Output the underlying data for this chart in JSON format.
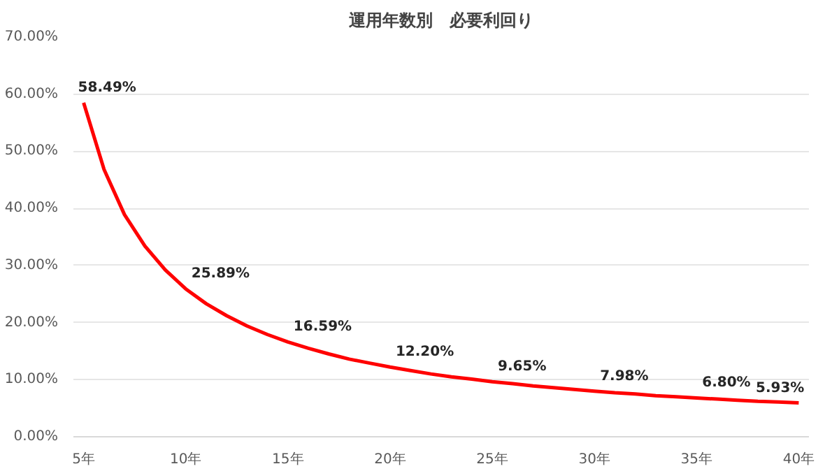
{
  "chart_data": {
    "type": "line",
    "title": "運用年数別　必要利回り",
    "x": [
      5,
      6,
      7,
      8,
      9,
      10,
      11,
      12,
      13,
      14,
      15,
      16,
      17,
      18,
      19,
      20,
      21,
      22,
      23,
      24,
      25,
      26,
      27,
      28,
      29,
      30,
      31,
      32,
      33,
      34,
      35,
      36,
      37,
      38,
      39,
      40
    ],
    "series": [
      {
        "color": "#ff0000",
        "values": [
          58.49,
          46.8,
          38.9,
          33.4,
          29.2,
          25.89,
          23.3,
          21.2,
          19.4,
          17.9,
          16.59,
          15.5,
          14.5,
          13.6,
          12.9,
          12.2,
          11.6,
          11.0,
          10.5,
          10.1,
          9.65,
          9.3,
          8.9,
          8.6,
          8.3,
          7.98,
          7.7,
          7.5,
          7.2,
          7.0,
          6.8,
          6.6,
          6.4,
          6.2,
          6.1,
          5.93
        ],
        "value_labels": [
          "58.49%",
          null,
          null,
          null,
          null,
          "25.89%",
          null,
          null,
          null,
          null,
          "16.59%",
          null,
          null,
          null,
          null,
          "12.20%",
          null,
          null,
          null,
          null,
          "9.65%",
          null,
          null,
          null,
          null,
          "7.98%",
          null,
          null,
          null,
          null,
          "6.80%",
          null,
          null,
          null,
          null,
          "5.93%"
        ]
      }
    ],
    "xlim": [
      4.5,
      40.5
    ],
    "xticks": [
      {
        "value": 5,
        "label": "5年"
      },
      {
        "value": 10,
        "label": "10年"
      },
      {
        "value": 15,
        "label": "15年"
      },
      {
        "value": 20,
        "label": "20年"
      },
      {
        "value": 25,
        "label": "25年"
      },
      {
        "value": 30,
        "label": "30年"
      },
      {
        "value": 35,
        "label": "35年"
      },
      {
        "value": 40,
        "label": "40年"
      }
    ],
    "ylim": [
      0,
      70
    ],
    "yticks": [
      {
        "value": 0,
        "label": "0.00%"
      },
      {
        "value": 10,
        "label": "10.00%"
      },
      {
        "value": 20,
        "label": "20.00%"
      },
      {
        "value": 30,
        "label": "30.00%"
      },
      {
        "value": 40,
        "label": "40.00%"
      },
      {
        "value": 50,
        "label": "50.00%"
      },
      {
        "value": 60,
        "label": "60.00%"
      },
      {
        "value": 70,
        "label": "70.00%"
      }
    ],
    "grid": "y",
    "marker": "none",
    "line_style": "solid"
  }
}
